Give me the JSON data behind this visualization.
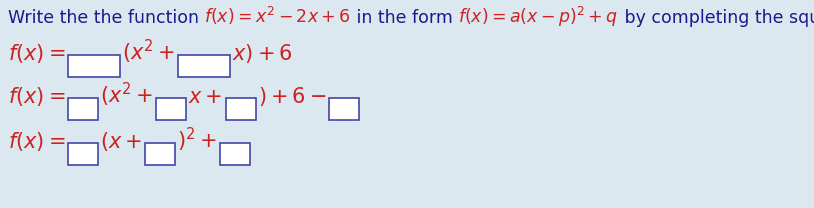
{
  "background_color": "#dce8f0",
  "title_color": "#1a1a8c",
  "math_color": "#cc2222",
  "box_color": "#4444aa",
  "title_fontsize": 12.5,
  "line_fontsize": 15,
  "fig_width": 8.14,
  "fig_height": 2.08,
  "dpi": 100,
  "title_plain1": "Write the the function ",
  "title_math1": "$f(x) = x^2 - 2x + 6$",
  "title_plain2": " in the form ",
  "title_math2": "$f(x) = a(x - p)^2 + q$",
  "title_plain3": " by completing the square:",
  "line1_parts": [
    "$f(x) =$",
    "BOX_WIDE",
    "$(x^2 +$",
    "BOX_WIDE",
    "$x) + 6$"
  ],
  "line2_parts": [
    "$f(x) =$",
    "BOX_SQ",
    "$(x^2 +$",
    "BOX_SQ",
    "$x +$",
    "BOX_SQ",
    "$) + 6 -$",
    "BOX_SQ"
  ],
  "line3_parts": [
    "$f(x) =$",
    "BOX_SQ",
    "$(x +$",
    "BOX_SQ",
    "$)^2 +$",
    "BOX_SQ"
  ]
}
